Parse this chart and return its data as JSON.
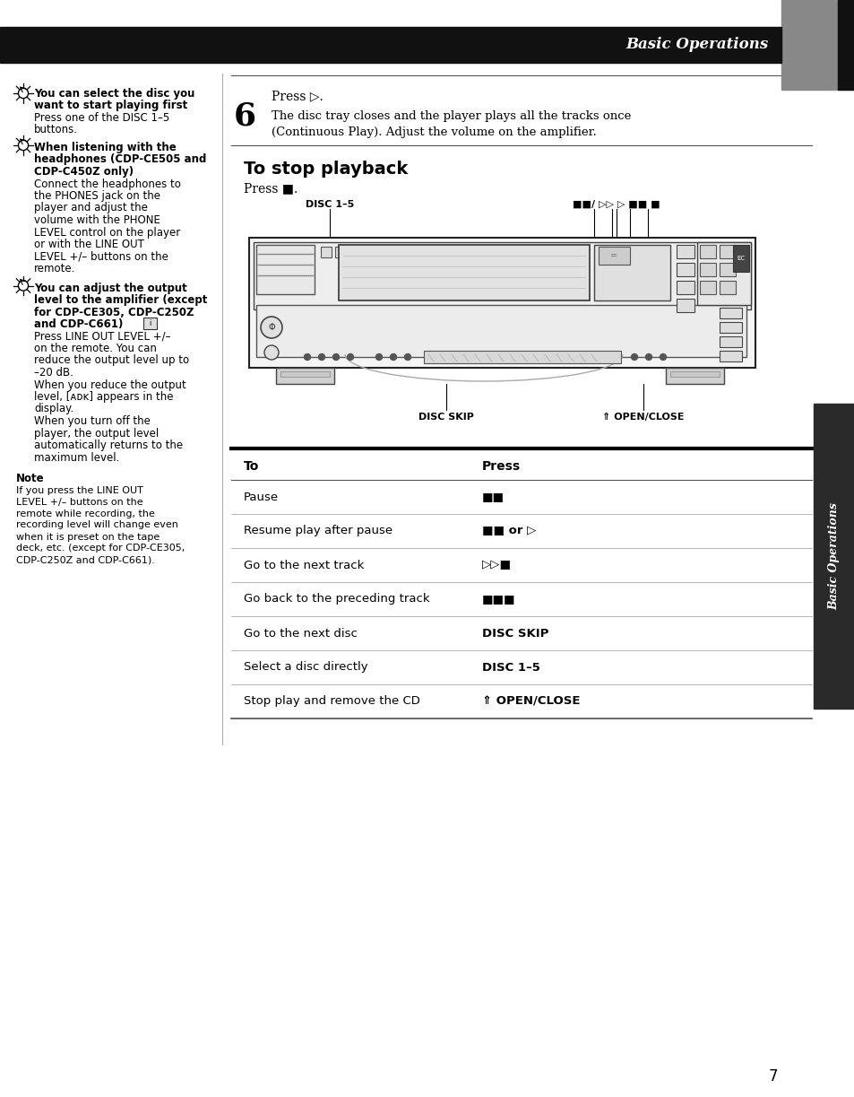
{
  "title": "Basic Operations",
  "page_number": "7",
  "bg_color": "#ffffff",
  "header_bg": "#111111",
  "header_text": "Basic Operations",
  "header_text_color": "#ffffff",
  "sidebar_text": "Basic Operations",
  "sidebar_bg": "#2a2a2a",
  "note_title": "Note",
  "note_text": "If you press the LINE OUT\nLEVEL +/– buttons on the\nremote while recording, the\nrecording level will change even\nwhen it is preset on the tape\ndeck, etc. (except for CDP-CE305,\nCDP-C250Z and CDP-C661).",
  "table_header": [
    "To",
    "Press"
  ],
  "table_to": [
    "Pause",
    "Resume play after pause",
    "Go to the next track",
    "Go back to the preceding track",
    "Go to the next disc",
    "Select a disc directly",
    "Stop play and remove the CD"
  ],
  "table_press": [
    "■■",
    "■■ or ▷",
    "▷▷■",
    "■■■",
    "DISC SKIP",
    "DISC 1–5",
    "⇑ OPEN/CLOSE"
  ],
  "tip1_bold": [
    "You can select the disc you",
    "want to start playing first"
  ],
  "tip1_normal": [
    "Press one of the DISC 1–5",
    "buttons."
  ],
  "tip2_bold": [
    "When listening with the",
    "headphones (CDP-CE505 and",
    "CDP-C450Z only)"
  ],
  "tip2_normal": [
    "Connect the headphones to",
    "the PHONES jack on the",
    "player and adjust the",
    "volume with the PHONE",
    "LEVEL control on the player",
    "or with the LINE OUT",
    "LEVEL +/– buttons on the",
    "remote."
  ],
  "tip3_bold": [
    "You can adjust the output",
    "level to the amplifier (except",
    "for CDP-CE305, CDP-C250Z",
    "and CDP-C661)"
  ],
  "tip3_normal": [
    "Press LINE OUT LEVEL +/–",
    "on the remote. You can",
    "reduce the output level up to",
    "–20 dB.",
    "When you reduce the output",
    "level, [ᴀᴅᴋ] appears in the",
    "display.",
    "When you turn off the",
    "player, the output level",
    "automatically returns to the",
    "maximum level."
  ],
  "step6_press": "Press ▷.",
  "step6_body1": "The disc tray closes and the player plays all the tracks once",
  "step6_body2": "(Continuous Play). Adjust the volume on the amplifier.",
  "stop_title": "To stop playback",
  "stop_body": "Press ■.",
  "disc_label": "DISC 1–5",
  "ctrl_label": "■■/ ▷▷ ▷ ■■ ■",
  "disc_skip_label": "DISC SKIP",
  "open_close_label": "⇑ OPEN/CLOSE"
}
